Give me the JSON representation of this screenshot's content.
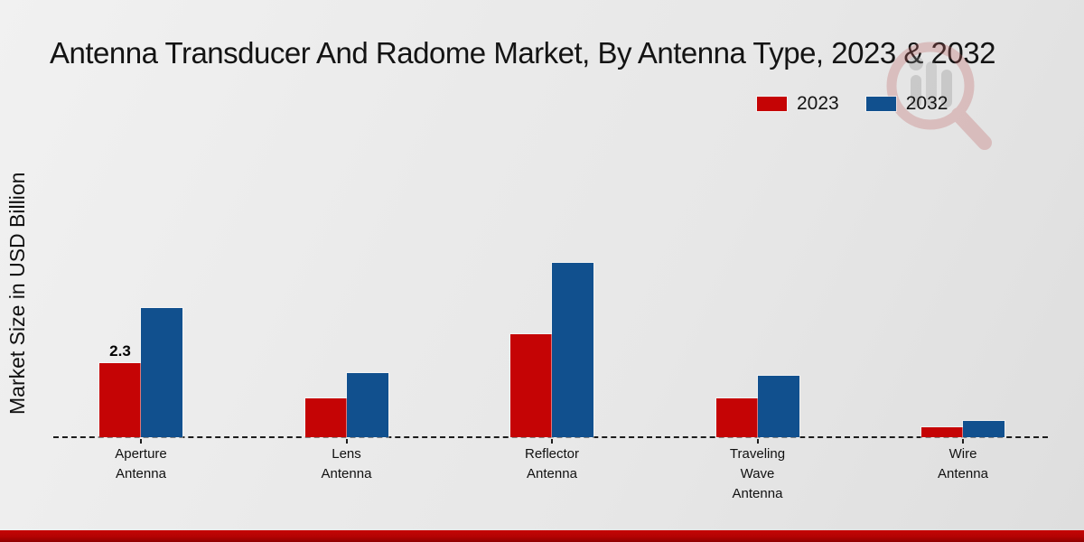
{
  "page": {
    "title": "Antenna Transducer And Radome Market, By Antenna Type, 2023 & 2032",
    "ylabel": "Market Size in USD Billion"
  },
  "legend": {
    "items": [
      {
        "label": "2023",
        "color": "#c50405"
      },
      {
        "label": "2032",
        "color": "#11508e"
      }
    ]
  },
  "colors": {
    "series_2023": "#c50405",
    "series_2032": "#11508e",
    "baseline": "#1c1c1c",
    "footer_bar": "#b30303",
    "title_text": "#141414",
    "background": "#e9e9e9"
  },
  "watermark": {
    "name": "magnifier-bar-chart-logo"
  },
  "chart_data": {
    "type": "bar",
    "categories": [
      "Aperture Antenna",
      "Lens Antenna",
      "Reflector Antenna",
      "Traveling Wave Antenna",
      "Wire Antenna"
    ],
    "category_label_lines": [
      [
        "Aperture",
        "Antenna"
      ],
      [
        "Lens",
        "Antenna"
      ],
      [
        "Reflector",
        "Antenna"
      ],
      [
        "Traveling",
        "Wave",
        "Antenna"
      ],
      [
        "Wire",
        "Antenna"
      ]
    ],
    "series": [
      {
        "name": "2023",
        "color": "#c50405",
        "values": [
          2.3,
          1.2,
          3.2,
          1.2,
          0.3
        ]
      },
      {
        "name": "2032",
        "color": "#11508e",
        "values": [
          4.0,
          2.0,
          5.4,
          1.9,
          0.5
        ]
      }
    ],
    "title": "Antenna Transducer And Radome Market, By Antenna Type, 2023 & 2032",
    "xlabel": "",
    "ylabel": "Market Size in USD Billion",
    "ylim": [
      0,
      6
    ],
    "grid": false,
    "axis_line_style": "dashed",
    "legend_position": "top-right",
    "data_labels": [
      {
        "series": "2023",
        "category_index": 0,
        "text": "2.3"
      }
    ]
  }
}
